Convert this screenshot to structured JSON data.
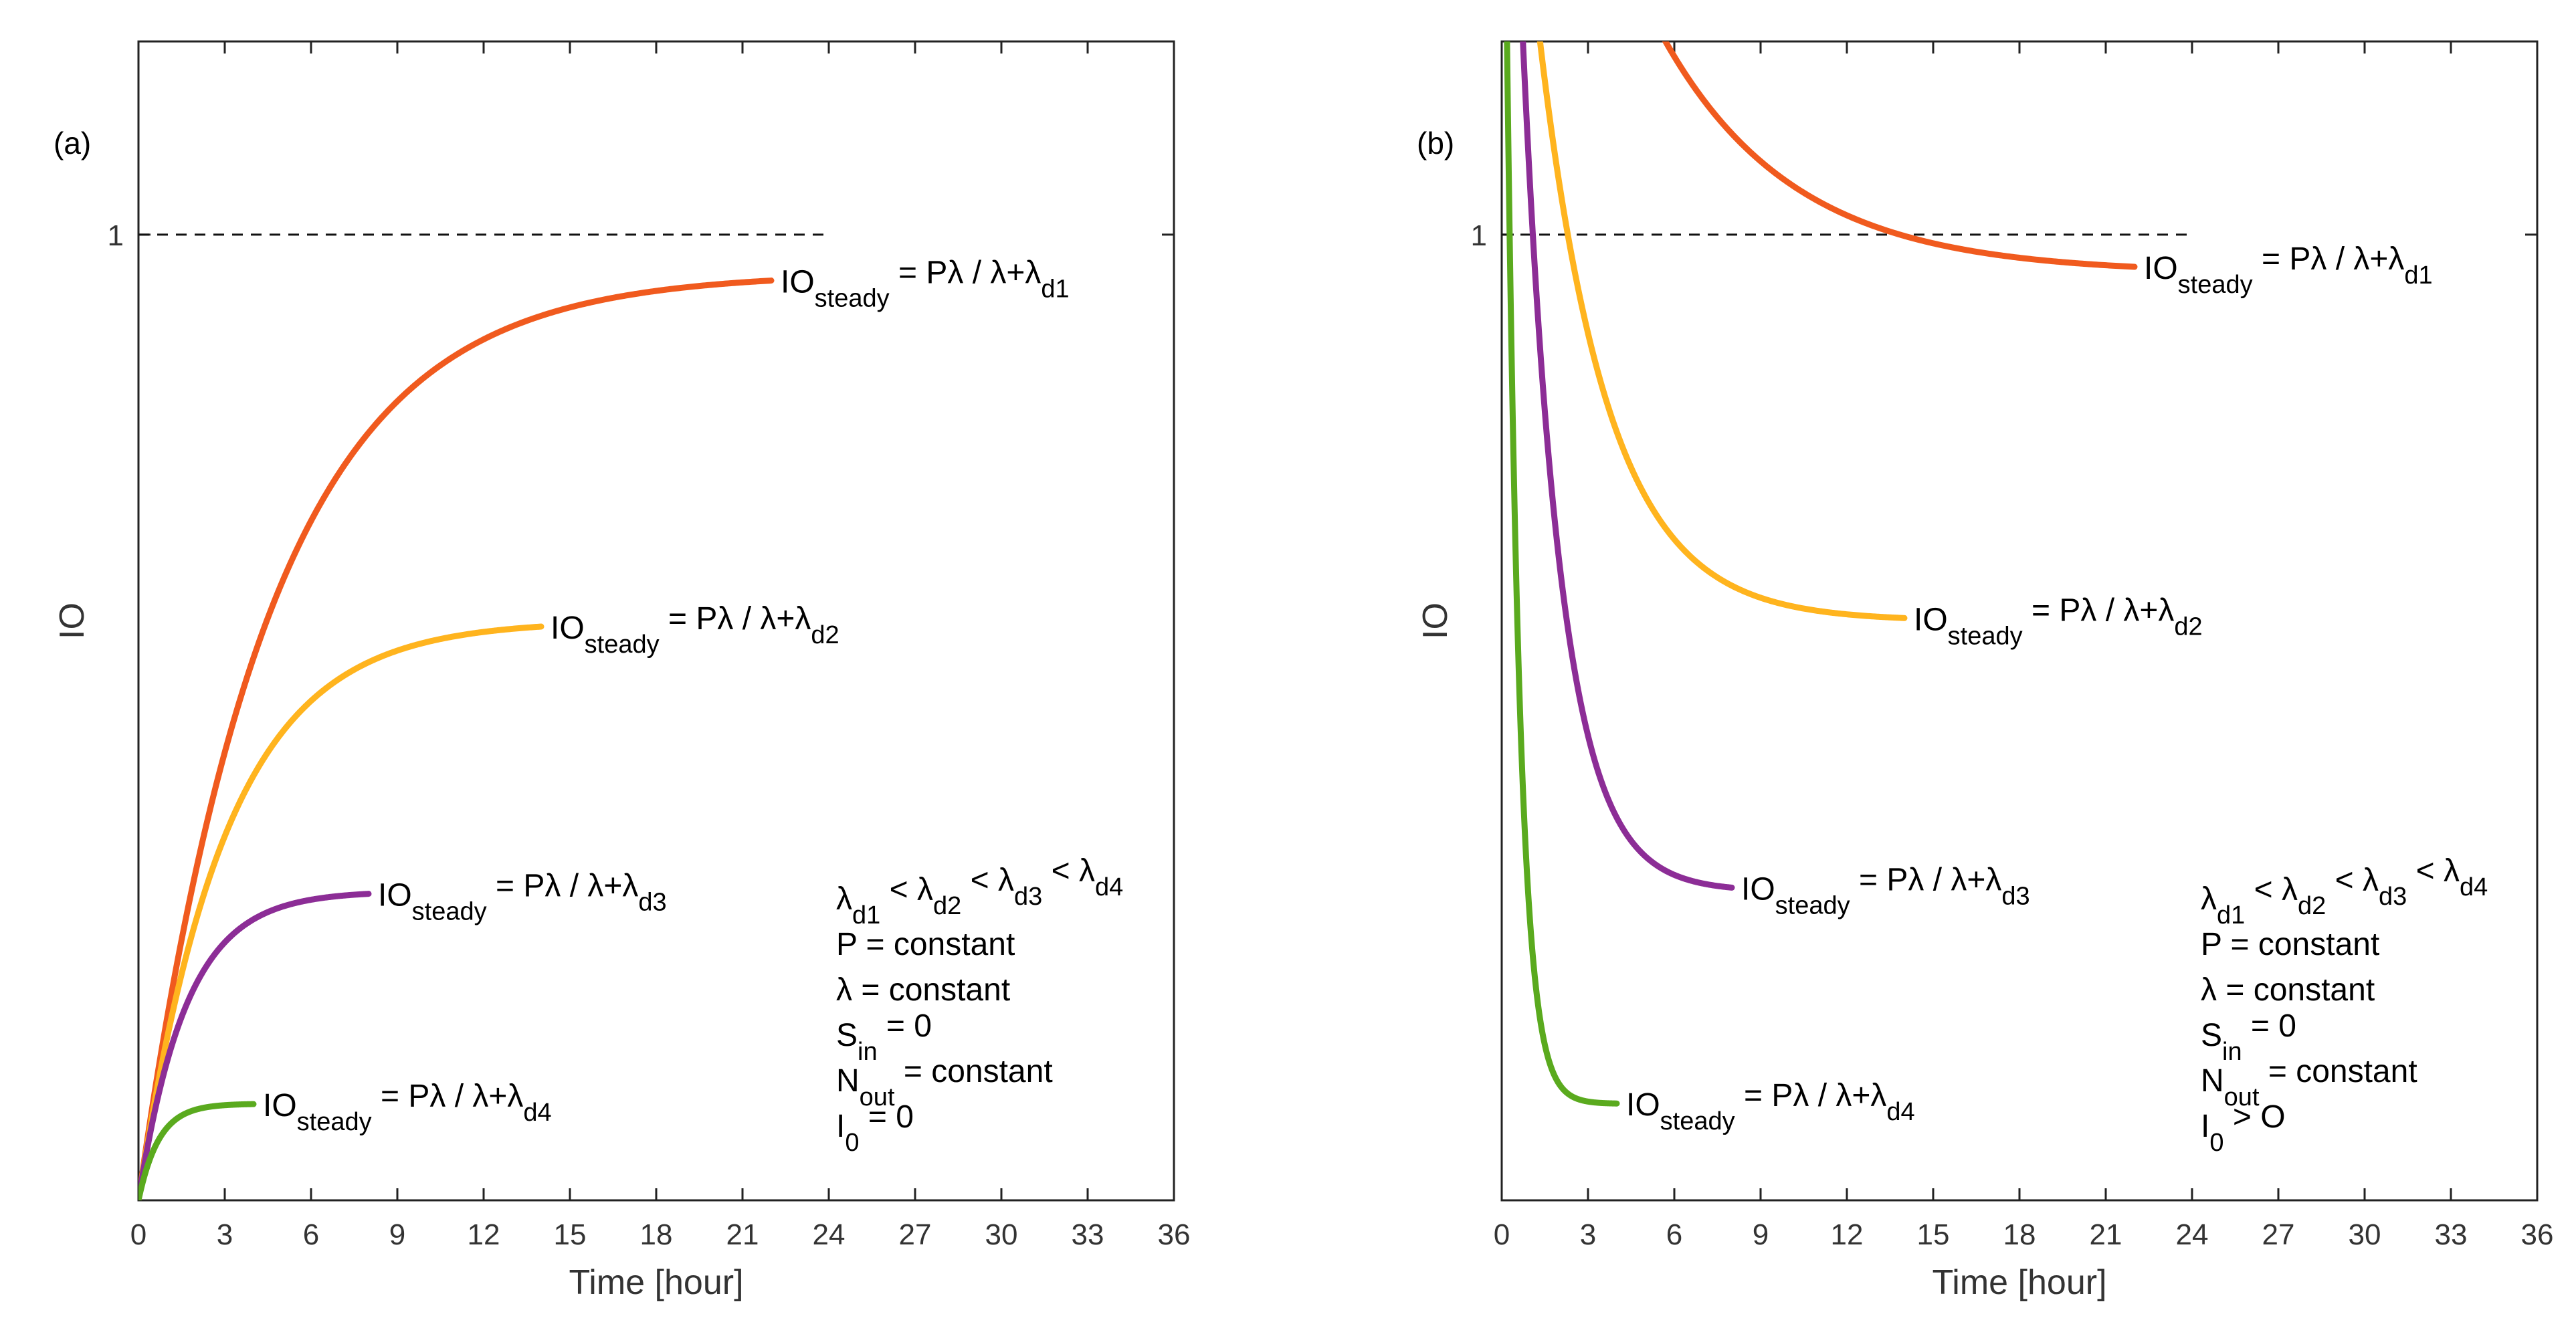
{
  "chart_data": [
    {
      "type": "line",
      "panel_label": "(a)",
      "xlabel": "Time [hour]",
      "ylabel": "IO",
      "xlim": [
        0,
        36
      ],
      "ylim": [
        0,
        1.2
      ],
      "xticks": [
        "0",
        "3",
        "6",
        "9",
        "12",
        "15",
        "18",
        "21",
        "24",
        "27",
        "30",
        "33",
        "36"
      ],
      "yticks": [
        {
          "value": 1,
          "label": "1"
        }
      ],
      "reference_line": {
        "y": 1,
        "x_range": [
          0,
          24
        ],
        "style": "dashed"
      },
      "series": [
        {
          "name": "d1",
          "color": "#F05A1E",
          "initial": 0,
          "steady": 0.96,
          "k": 0.22,
          "x_end": 22,
          "label": {
            "main": "IO",
            "sub": "steady",
            "rest": " = Pλ / λ+λ",
            "sub2": "d1"
          }
        },
        {
          "name": "d2",
          "color": "#FFB41E",
          "initial": 0,
          "steady": 0.6,
          "k": 0.33,
          "x_end": 14,
          "label": {
            "main": "IO",
            "sub": "steady",
            "rest": " = Pλ / λ+λ",
            "sub2": "d2"
          }
        },
        {
          "name": "d3",
          "color": "#8C2D96",
          "initial": 0,
          "steady": 0.32,
          "k": 0.6,
          "x_end": 8,
          "label": {
            "main": "IO",
            "sub": "steady",
            "rest": " = Pλ / λ+λ",
            "sub2": "d3"
          }
        },
        {
          "name": "d4",
          "color": "#5AAA1E",
          "initial": 0,
          "steady": 0.1,
          "k": 1.4,
          "x_end": 4,
          "label": {
            "main": "IO",
            "sub": "steady",
            "rest": " = Pλ / λ+λ",
            "sub2": "d4"
          }
        }
      ],
      "conditions": [
        {
          "parts": [
            [
              "λ",
              ""
            ],
            [
              "d1",
              "sub"
            ],
            [
              " < λ",
              ""
            ],
            [
              "d2",
              "sub"
            ],
            [
              " < λ",
              ""
            ],
            [
              "d3",
              "sub"
            ],
            [
              " < λ",
              ""
            ],
            [
              "d4",
              "sub"
            ]
          ]
        },
        {
          "parts": [
            [
              "P = constant",
              ""
            ]
          ]
        },
        {
          "parts": [
            [
              "λ = constant",
              ""
            ]
          ]
        },
        {
          "parts": [
            [
              "S",
              ""
            ],
            [
              "in",
              "sub"
            ],
            [
              " = 0",
              ""
            ]
          ]
        },
        {
          "parts": [
            [
              "N",
              ""
            ],
            [
              "out",
              "sub"
            ],
            [
              " = constant",
              ""
            ]
          ]
        },
        {
          "parts": [
            [
              "I",
              ""
            ],
            [
              "0",
              "sub"
            ],
            [
              " = 0",
              ""
            ]
          ]
        }
      ]
    },
    {
      "type": "line",
      "panel_label": "(b)",
      "xlabel": "Time [hour]",
      "ylabel": "IO",
      "xlim": [
        0,
        36
      ],
      "ylim": [
        0,
        1.2
      ],
      "xticks": [
        "0",
        "3",
        "6",
        "9",
        "12",
        "15",
        "18",
        "21",
        "24",
        "27",
        "30",
        "33",
        "36"
      ],
      "yticks": [
        {
          "value": 1,
          "label": "1"
        }
      ],
      "reference_line": {
        "y": 1,
        "x_range": [
          0,
          24
        ],
        "style": "dashed"
      },
      "series": [
        {
          "name": "d1",
          "color": "#F05A1E",
          "initial": 1.8,
          "steady": 0.96,
          "k": 0.22,
          "x_end": 22,
          "label": {
            "main": "IO",
            "sub": "steady",
            "rest": " = Pλ / λ+λ",
            "sub2": "d1"
          }
        },
        {
          "name": "d2",
          "color": "#FFB41E",
          "initial": 1.65,
          "steady": 0.6,
          "k": 0.42,
          "x_end": 14,
          "label": {
            "main": "IO",
            "sub": "steady",
            "rest": " = Pλ / λ+λ",
            "sub2": "d2"
          }
        },
        {
          "name": "d3",
          "color": "#8C2D96",
          "initial": 1.85,
          "steady": 0.32,
          "k": 0.75,
          "x_end": 8,
          "label": {
            "main": "IO",
            "sub": "steady",
            "rest": " = Pλ / λ+λ",
            "sub2": "d3"
          }
        },
        {
          "name": "d4",
          "color": "#5AAA1E",
          "initial": 1.75,
          "steady": 0.1,
          "k": 2.2,
          "x_end": 4,
          "label": {
            "main": "IO",
            "sub": "steady",
            "rest": " = Pλ / λ+λ",
            "sub2": "d4"
          }
        }
      ],
      "conditions": [
        {
          "parts": [
            [
              "λ",
              ""
            ],
            [
              "d1",
              "sub"
            ],
            [
              " < λ",
              ""
            ],
            [
              "d2",
              "sub"
            ],
            [
              " < λ",
              ""
            ],
            [
              "d3",
              "sub"
            ],
            [
              " < λ",
              ""
            ],
            [
              "d4",
              "sub"
            ]
          ]
        },
        {
          "parts": [
            [
              "P = constant",
              ""
            ]
          ]
        },
        {
          "parts": [
            [
              "λ = constant",
              ""
            ]
          ]
        },
        {
          "parts": [
            [
              "S",
              ""
            ],
            [
              "in",
              "sub"
            ],
            [
              " = 0",
              ""
            ]
          ]
        },
        {
          "parts": [
            [
              "N",
              ""
            ],
            [
              "out",
              "sub"
            ],
            [
              " = constant",
              ""
            ]
          ]
        },
        {
          "parts": [
            [
              "I",
              ""
            ],
            [
              "0",
              "sub"
            ],
            [
              " > O",
              ""
            ]
          ]
        }
      ]
    }
  ]
}
